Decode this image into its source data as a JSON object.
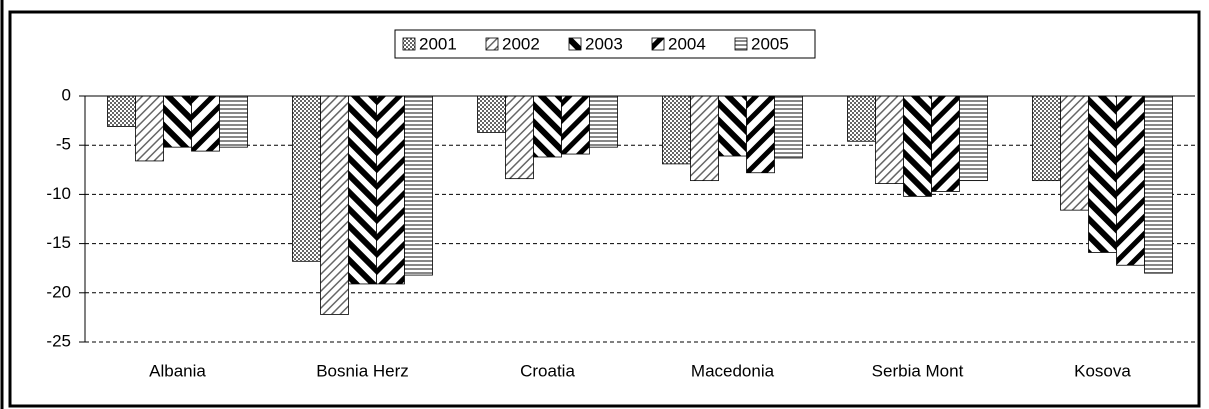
{
  "chart_data": {
    "type": "bar",
    "categories": [
      "Albania",
      "Bosnia Herz",
      "Croatia",
      "Macedonia",
      "Serbia Mont",
      "Kosova"
    ],
    "series": [
      {
        "name": "2001",
        "color": "#808080",
        "pattern": "dots",
        "values": [
          -3.1,
          -16.8,
          -3.7,
          -6.9,
          -4.6,
          -8.6
        ]
      },
      {
        "name": "2002",
        "color": "#808080",
        "pattern": "thin-diagonal",
        "values": [
          -6.6,
          -22.2,
          -8.4,
          -8.6,
          -8.9,
          -11.6
        ]
      },
      {
        "name": "2003",
        "color": "#000000",
        "pattern": "thick-backslash",
        "values": [
          -5.2,
          -19.1,
          -6.2,
          -6.1,
          -10.2,
          -15.9
        ]
      },
      {
        "name": "2004",
        "color": "#000000",
        "pattern": "thick-slash",
        "values": [
          -5.6,
          -19.1,
          -5.9,
          -7.8,
          -9.7,
          -17.2
        ]
      },
      {
        "name": "2005",
        "color": "#808080",
        "pattern": "horizontal",
        "values": [
          -5.2,
          -18.2,
          -5.2,
          -6.3,
          -8.6,
          -18.0
        ]
      }
    ],
    "ylim": [
      -25,
      0
    ],
    "yticks": [
      0,
      -5,
      -10,
      -15,
      -20,
      -25
    ],
    "grid": true,
    "legend": "top"
  }
}
